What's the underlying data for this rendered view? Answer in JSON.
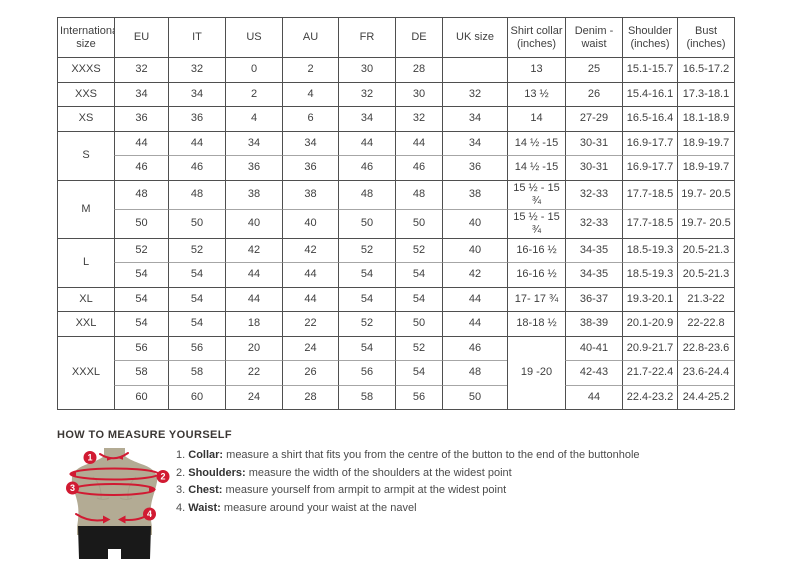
{
  "table": {
    "headers": [
      "International size",
      "EU",
      "IT",
      "US",
      "AU",
      "FR",
      "DE",
      "UK size",
      "Shirt collar (inches)",
      "Denim - waist",
      "Shoulder (inches)",
      "Bust (inches)"
    ],
    "groups": [
      {
        "size": "XXXS",
        "rows": [
          [
            "32",
            "32",
            "0",
            "2",
            "30",
            "28",
            "",
            "13",
            "25",
            "15.1-15.7",
            "16.5-17.2"
          ]
        ]
      },
      {
        "size": "XXS",
        "rows": [
          [
            "34",
            "34",
            "2",
            "4",
            "32",
            "30",
            "32",
            "13 ½",
            "26",
            "15.4-16.1",
            "17.3-18.1"
          ]
        ]
      },
      {
        "size": "XS",
        "rows": [
          [
            "36",
            "36",
            "4",
            "6",
            "34",
            "32",
            "34",
            "14",
            "27-29",
            "16.5-16.4",
            "18.1-18.9"
          ]
        ]
      },
      {
        "size": "S",
        "rows": [
          [
            "44",
            "44",
            "34",
            "34",
            "44",
            "44",
            "34",
            "14 ½ -15",
            "30-31",
            "16.9-17.7",
            "18.9-19.7"
          ],
          [
            "46",
            "46",
            "36",
            "36",
            "46",
            "46",
            "36",
            "14 ½ -15",
            "30-31",
            "16.9-17.7",
            "18.9-19.7"
          ]
        ]
      },
      {
        "size": "M",
        "rows": [
          [
            "48",
            "48",
            "38",
            "38",
            "48",
            "48",
            "38",
            "15 ½ - 15 ¾",
            "32-33",
            "17.7-18.5",
            "19.7- 20.5"
          ],
          [
            "50",
            "50",
            "40",
            "40",
            "50",
            "50",
            "40",
            "15 ½ - 15 ¾",
            "32-33",
            "17.7-18.5",
            "19.7- 20.5"
          ]
        ]
      },
      {
        "size": "L",
        "rows": [
          [
            "52",
            "52",
            "42",
            "42",
            "52",
            "52",
            "40",
            "16-16 ½",
            "34-35",
            "18.5-19.3",
            "20.5-21.3"
          ],
          [
            "54",
            "54",
            "44",
            "44",
            "54",
            "54",
            "42",
            "16-16 ½",
            "34-35",
            "18.5-19.3",
            "20.5-21.3"
          ]
        ]
      },
      {
        "size": "XL",
        "rows": [
          [
            "54",
            "54",
            "44",
            "44",
            "54",
            "54",
            "44",
            "17- 17 ¾",
            "36-37",
            "19.3-20.1",
            "21.3-22"
          ]
        ]
      },
      {
        "size": "XXL",
        "rows": [
          [
            "54",
            "54",
            "18",
            "22",
            "52",
            "50",
            "44",
            "18-18 ½",
            "38-39",
            "20.1-20.9",
            "22-22.8"
          ]
        ]
      },
      {
        "size": "XXXL",
        "merged_collar": "19 -20",
        "rows": [
          [
            "56",
            "56",
            "20",
            "24",
            "54",
            "52",
            "46",
            "40-41",
            "20.9-21.7",
            "22.8-23.6"
          ],
          [
            "58",
            "58",
            "22",
            "26",
            "56",
            "54",
            "48",
            "42-43",
            "21.7-22.4",
            "23.6-24.4"
          ],
          [
            "60",
            "60",
            "24",
            "28",
            "58",
            "56",
            "50",
            "44",
            "22.4-23.2",
            "24.4-25.2"
          ]
        ]
      }
    ]
  },
  "measure": {
    "title": "HOW TO MEASURE YOURSELF",
    "steps": [
      {
        "num": "1.",
        "label": "Collar:",
        "text": "measure a shirt that fits you from the centre of the button to the end of the buttonhole"
      },
      {
        "num": "2.",
        "label": "Shoulders:",
        "text": "measure the width of the shoulders at the widest point"
      },
      {
        "num": "3.",
        "label": "Chest:",
        "text": "measure yourself from armpit to armpit at the widest point"
      },
      {
        "num": "4.",
        "label": "Waist:",
        "text": "measure around your waist at the navel"
      }
    ],
    "figure_badges": [
      "1",
      "2",
      "3",
      "4"
    ]
  },
  "colors": {
    "border_dark": "#4f4f4f",
    "border_light": "#a6a6a6",
    "text": "#3f3f3f",
    "accent_red": "#d11a32",
    "mannequin_beige": "#b3ab94",
    "shorts_black": "#191919"
  }
}
